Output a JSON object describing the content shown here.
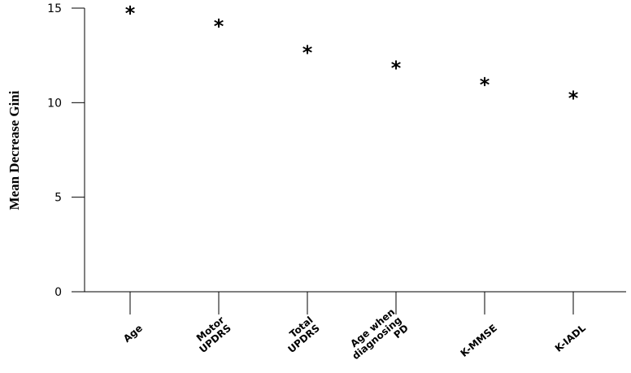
{
  "chart_data": {
    "type": "scatter",
    "title": "",
    "xlabel": "",
    "ylabel": "Mean Decrease Gini",
    "ylim": [
      0,
      15
    ],
    "yticks": [
      0,
      5,
      10,
      15
    ],
    "categories": [
      [
        "Age"
      ],
      [
        "Motor",
        "UPDRS"
      ],
      [
        "Total",
        "UPDRS"
      ],
      [
        "Age when",
        "diagnosing",
        "PD"
      ],
      [
        "K-MMSE"
      ],
      [
        "K-IADL"
      ]
    ],
    "values": [
      14.9,
      14.2,
      12.8,
      12.0,
      11.1,
      10.4
    ],
    "marker": "*",
    "grid": false,
    "legend": "none",
    "colors": {
      "axis": "#000000",
      "marker": "#000000"
    }
  }
}
